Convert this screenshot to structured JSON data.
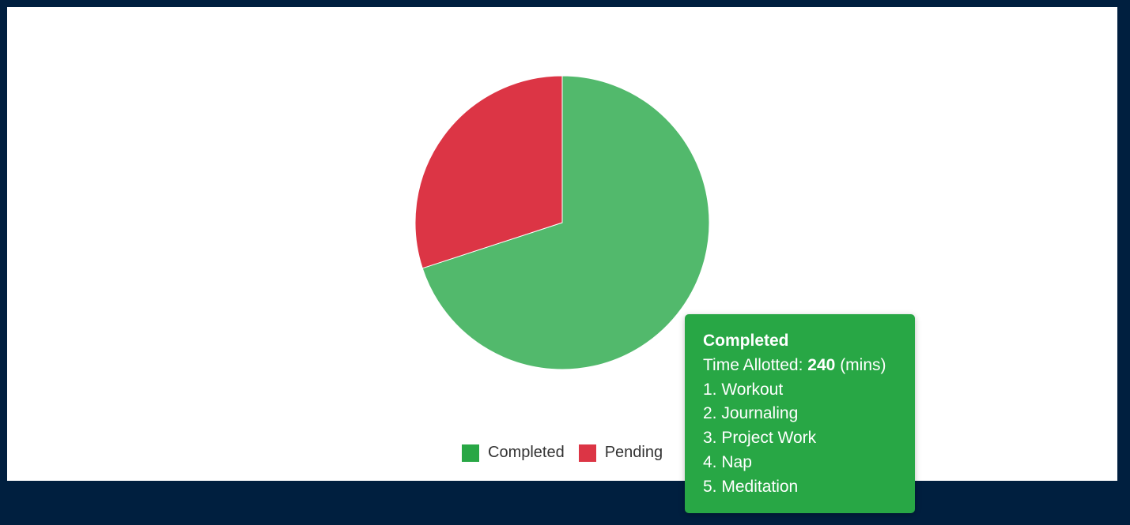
{
  "colors": {
    "page_bg": "#001f3f",
    "panel_bg": "#ffffff",
    "completed": "#28a745",
    "pending": "#dc3545",
    "completed_slice": "#52b96c"
  },
  "chart_data": {
    "type": "pie",
    "categories": [
      "Completed",
      "Pending"
    ],
    "series": [
      {
        "values": [
          240,
          103
        ],
        "colors": [
          "#52b96c",
          "#dc3545"
        ]
      }
    ],
    "legend": {
      "position": "bottom",
      "entries": [
        {
          "label": "Completed",
          "color": "#28a745"
        },
        {
          "label": "Pending",
          "color": "#dc3545"
        }
      ]
    }
  },
  "tooltip": {
    "title": "Completed",
    "line_label": "Time Allotted:",
    "line_value": "240",
    "line_unit": "(mins)",
    "items": [
      "1. Workout",
      "2. Journaling",
      "3. Project Work",
      "4. Nap",
      "5. Meditation"
    ],
    "color": "#28a745"
  }
}
